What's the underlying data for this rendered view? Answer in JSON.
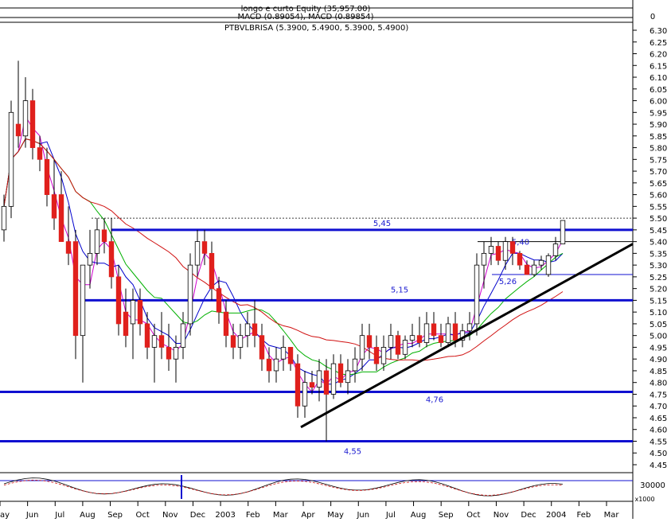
{
  "panels": {
    "top_header_1": "longo e curto Equity (35,957.00)",
    "top_header_2": "MACD (0.89054), MACD (0.89854)",
    "top_zero": "0",
    "price_title": "PTBVLBRISA (5.3900, 5.4900, 5.3900, 5.4900)",
    "bottom_axis_label": "30000",
    "bottom_axis_unit": "x1000"
  },
  "colors": {
    "up_candle": "#ffffff",
    "down_candle": "#e0201c",
    "candle_outline": "#000000",
    "support_line": "#1010d0",
    "trend_line": "#000000",
    "ma_fast": "#d000d0",
    "ma_mid": "#0000cc",
    "ma_slow": "#00b000",
    "ma_long": "#d01010",
    "annotation_text": "#1a1ad0"
  },
  "chart_data": {
    "type": "candlestick",
    "title": "PTBVLBRISA (5.3900, 5.4900, 5.3900, 5.4900)",
    "xlabel": "",
    "ylabel": "",
    "ylim": [
      4.38,
      6.36
    ],
    "yticks": [
      "6.30",
      "6.25",
      "6.20",
      "6.15",
      "6.10",
      "6.05",
      "6.00",
      "5.95",
      "5.90",
      "5.85",
      "5.80",
      "5.75",
      "5.70",
      "5.65",
      "5.60",
      "5.55",
      "5.50",
      "5.45",
      "5.40",
      "5.35",
      "5.30",
      "5.25",
      "5.20",
      "5.15",
      "5.10",
      "5.05",
      "5.00",
      "4.95",
      "4.90",
      "4.85",
      "4.80",
      "4.75",
      "4.70",
      "4.65",
      "4.60",
      "4.55",
      "4.50",
      "4.45"
    ],
    "xticks": [
      "ay",
      "Jun",
      "Jul",
      "Aug",
      "Sep",
      "Oct",
      "Nov",
      "Dec",
      "2003",
      "Feb",
      "Mar",
      "Apr",
      "May",
      "Jun",
      "Jul",
      "Aug",
      "Sep",
      "Oct",
      "Nov",
      "Dec",
      "2004",
      "Feb",
      "Mar"
    ],
    "support_levels": [
      {
        "value": 5.45,
        "label": "5,45"
      },
      {
        "value": 5.4,
        "label": "5,40"
      },
      {
        "value": 5.26,
        "label": "5,26"
      },
      {
        "value": 5.15,
        "label": "5,15"
      },
      {
        "value": 4.76,
        "label": "4,76"
      },
      {
        "value": 4.55,
        "label": "4,55"
      }
    ],
    "reference_line": 5.5,
    "trend_line": {
      "from": [
        "Apr",
        4.61
      ],
      "to": [
        "Mar",
        5.39
      ]
    },
    "candles": [
      {
        "o": 5.45,
        "h": 5.6,
        "l": 5.4,
        "c": 5.55
      },
      {
        "o": 5.55,
        "h": 6.0,
        "l": 5.5,
        "c": 5.95
      },
      {
        "o": 5.9,
        "h": 6.17,
        "l": 5.8,
        "c": 5.85
      },
      {
        "o": 5.85,
        "h": 6.1,
        "l": 5.8,
        "c": 6.0
      },
      {
        "o": 6.0,
        "h": 6.05,
        "l": 5.75,
        "c": 5.8
      },
      {
        "o": 5.8,
        "h": 5.85,
        "l": 5.7,
        "c": 5.75
      },
      {
        "o": 5.75,
        "h": 5.8,
        "l": 5.55,
        "c": 5.6
      },
      {
        "o": 5.6,
        "h": 5.75,
        "l": 5.45,
        "c": 5.5
      },
      {
        "o": 5.6,
        "h": 5.7,
        "l": 5.4,
        "c": 5.4
      },
      {
        "o": 5.4,
        "h": 5.55,
        "l": 5.3,
        "c": 5.35
      },
      {
        "o": 5.4,
        "h": 5.45,
        "l": 4.9,
        "c": 5.0
      },
      {
        "o": 5.0,
        "h": 5.3,
        "l": 4.8,
        "c": 5.3
      },
      {
        "o": 5.3,
        "h": 5.45,
        "l": 5.2,
        "c": 5.35
      },
      {
        "o": 5.35,
        "h": 5.5,
        "l": 5.3,
        "c": 5.45
      },
      {
        "o": 5.45,
        "h": 5.5,
        "l": 5.35,
        "c": 5.4
      },
      {
        "o": 5.4,
        "h": 5.5,
        "l": 5.2,
        "c": 5.25
      },
      {
        "o": 5.25,
        "h": 5.3,
        "l": 5.0,
        "c": 5.05
      },
      {
        "o": 5.1,
        "h": 5.2,
        "l": 4.95,
        "c": 5.0
      },
      {
        "o": 5.05,
        "h": 5.2,
        "l": 4.9,
        "c": 5.15
      },
      {
        "o": 5.15,
        "h": 5.2,
        "l": 5.0,
        "c": 5.05
      },
      {
        "o": 5.05,
        "h": 5.1,
        "l": 4.9,
        "c": 4.95
      },
      {
        "o": 4.95,
        "h": 5.05,
        "l": 4.8,
        "c": 5.0
      },
      {
        "o": 5.0,
        "h": 5.1,
        "l": 4.9,
        "c": 4.95
      },
      {
        "o": 4.95,
        "h": 5.05,
        "l": 4.85,
        "c": 4.9
      },
      {
        "o": 4.9,
        "h": 5.0,
        "l": 4.8,
        "c": 4.95
      },
      {
        "o": 4.95,
        "h": 5.1,
        "l": 4.9,
        "c": 5.05
      },
      {
        "o": 5.05,
        "h": 5.35,
        "l": 5.0,
        "c": 5.3
      },
      {
        "o": 5.3,
        "h": 5.45,
        "l": 5.25,
        "c": 5.4
      },
      {
        "o": 5.4,
        "h": 5.45,
        "l": 5.3,
        "c": 5.35
      },
      {
        "o": 5.35,
        "h": 5.4,
        "l": 5.15,
        "c": 5.2
      },
      {
        "o": 5.2,
        "h": 5.25,
        "l": 5.05,
        "c": 5.1
      },
      {
        "o": 5.1,
        "h": 5.15,
        "l": 4.95,
        "c": 5.0
      },
      {
        "o": 5.0,
        "h": 5.05,
        "l": 4.9,
        "c": 4.95
      },
      {
        "o": 4.95,
        "h": 5.05,
        "l": 4.9,
        "c": 5.0
      },
      {
        "o": 5.0,
        "h": 5.1,
        "l": 4.95,
        "c": 5.05
      },
      {
        "o": 5.05,
        "h": 5.15,
        "l": 4.95,
        "c": 5.0
      },
      {
        "o": 5.0,
        "h": 5.05,
        "l": 4.85,
        "c": 4.9
      },
      {
        "o": 4.9,
        "h": 4.95,
        "l": 4.8,
        "c": 4.85
      },
      {
        "o": 4.85,
        "h": 4.95,
        "l": 4.8,
        "c": 4.9
      },
      {
        "o": 4.9,
        "h": 5.0,
        "l": 4.85,
        "c": 4.95
      },
      {
        "o": 4.95,
        "h": 4.95,
        "l": 4.85,
        "c": 4.88
      },
      {
        "o": 4.88,
        "h": 4.92,
        "l": 4.65,
        "c": 4.7
      },
      {
        "o": 4.7,
        "h": 4.85,
        "l": 4.65,
        "c": 4.8
      },
      {
        "o": 4.8,
        "h": 4.85,
        "l": 4.75,
        "c": 4.78
      },
      {
        "o": 4.78,
        "h": 4.9,
        "l": 4.72,
        "c": 4.85
      },
      {
        "o": 4.85,
        "h": 4.9,
        "l": 4.55,
        "c": 4.75
      },
      {
        "o": 4.75,
        "h": 4.92,
        "l": 4.73,
        "c": 4.88
      },
      {
        "o": 4.88,
        "h": 4.92,
        "l": 4.78,
        "c": 4.8
      },
      {
        "o": 4.8,
        "h": 4.9,
        "l": 4.75,
        "c": 4.85
      },
      {
        "o": 4.85,
        "h": 4.95,
        "l": 4.8,
        "c": 4.9
      },
      {
        "o": 4.9,
        "h": 5.05,
        "l": 4.85,
        "c": 5.0
      },
      {
        "o": 5.0,
        "h": 5.05,
        "l": 4.9,
        "c": 4.95
      },
      {
        "o": 4.95,
        "h": 5.0,
        "l": 4.85,
        "c": 4.88
      },
      {
        "o": 4.88,
        "h": 5.0,
        "l": 4.85,
        "c": 4.95
      },
      {
        "o": 4.95,
        "h": 5.05,
        "l": 4.9,
        "c": 5.0
      },
      {
        "o": 5.0,
        "h": 5.02,
        "l": 4.9,
        "c": 4.92
      },
      {
        "o": 4.92,
        "h": 5.0,
        "l": 4.9,
        "c": 4.98
      },
      {
        "o": 4.98,
        "h": 5.05,
        "l": 4.95,
        "c": 5.0
      },
      {
        "o": 5.0,
        "h": 5.08,
        "l": 4.95,
        "c": 4.97
      },
      {
        "o": 4.97,
        "h": 5.1,
        "l": 4.95,
        "c": 5.05
      },
      {
        "o": 5.05,
        "h": 5.1,
        "l": 4.98,
        "c": 5.0
      },
      {
        "o": 5.0,
        "h": 5.05,
        "l": 4.95,
        "c": 4.97
      },
      {
        "o": 4.97,
        "h": 5.08,
        "l": 4.95,
        "c": 5.05
      },
      {
        "o": 5.05,
        "h": 5.1,
        "l": 4.95,
        "c": 4.98
      },
      {
        "o": 4.98,
        "h": 5.05,
        "l": 4.95,
        "c": 5.02
      },
      {
        "o": 5.02,
        "h": 5.1,
        "l": 4.98,
        "c": 5.05
      },
      {
        "o": 5.05,
        "h": 5.35,
        "l": 5.0,
        "c": 5.3
      },
      {
        "o": 5.3,
        "h": 5.4,
        "l": 5.2,
        "c": 5.35
      },
      {
        "o": 5.35,
        "h": 5.42,
        "l": 5.3,
        "c": 5.38
      },
      {
        "o": 5.38,
        "h": 5.4,
        "l": 5.3,
        "c": 5.32
      },
      {
        "o": 5.32,
        "h": 5.42,
        "l": 5.28,
        "c": 5.4
      },
      {
        "o": 5.4,
        "h": 5.42,
        "l": 5.3,
        "c": 5.35
      },
      {
        "o": 5.35,
        "h": 5.36,
        "l": 5.28,
        "c": 5.3
      },
      {
        "o": 5.3,
        "h": 5.32,
        "l": 5.26,
        "c": 5.26
      },
      {
        "o": 5.26,
        "h": 5.32,
        "l": 5.25,
        "c": 5.3
      },
      {
        "o": 5.3,
        "h": 5.34,
        "l": 5.28,
        "c": 5.32
      },
      {
        "o": 5.26,
        "h": 5.35,
        "l": 5.25,
        "c": 5.34
      },
      {
        "o": 5.34,
        "h": 5.42,
        "l": 5.32,
        "c": 5.39
      },
      {
        "o": 5.39,
        "h": 5.49,
        "l": 5.39,
        "c": 5.49
      }
    ]
  }
}
